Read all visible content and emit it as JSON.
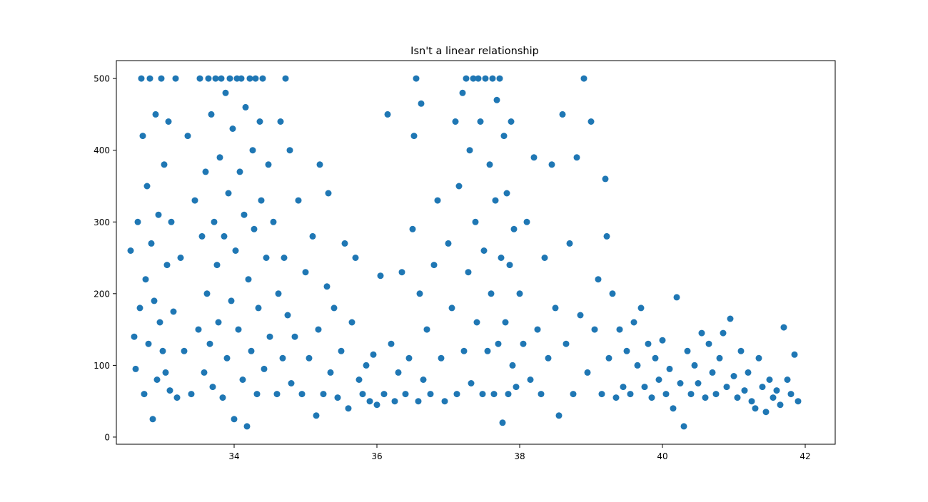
{
  "chart_data": {
    "type": "scatter",
    "title": "Isn't a linear relationship",
    "xlabel": "",
    "ylabel": "",
    "xlim": [
      32.35,
      42.42
    ],
    "ylim": [
      -10,
      525
    ],
    "xticks": [
      34,
      36,
      38,
      40,
      42
    ],
    "yticks": [
      0,
      100,
      200,
      300,
      400,
      500
    ],
    "grid": false,
    "marker_color": "#1f77b4",
    "series": [
      {
        "points": [
          [
            32.55,
            260
          ],
          [
            32.6,
            140
          ],
          [
            32.62,
            95
          ],
          [
            32.65,
            300
          ],
          [
            32.68,
            180
          ],
          [
            32.7,
            500
          ],
          [
            32.72,
            420
          ],
          [
            32.74,
            60
          ],
          [
            32.76,
            220
          ],
          [
            32.78,
            350
          ],
          [
            32.8,
            130
          ],
          [
            32.82,
            500
          ],
          [
            32.84,
            270
          ],
          [
            32.86,
            25
          ],
          [
            32.88,
            190
          ],
          [
            32.9,
            450
          ],
          [
            32.92,
            80
          ],
          [
            32.94,
            310
          ],
          [
            32.96,
            160
          ],
          [
            32.98,
            500
          ],
          [
            33.0,
            120
          ],
          [
            33.02,
            380
          ],
          [
            33.04,
            90
          ],
          [
            33.06,
            240
          ],
          [
            33.08,
            440
          ],
          [
            33.1,
            65
          ],
          [
            33.12,
            300
          ],
          [
            33.15,
            175
          ],
          [
            33.18,
            500
          ],
          [
            33.2,
            55
          ],
          [
            33.25,
            250
          ],
          [
            33.3,
            120
          ],
          [
            33.35,
            420
          ],
          [
            33.4,
            60
          ],
          [
            33.45,
            330
          ],
          [
            33.5,
            150
          ],
          [
            33.52,
            500
          ],
          [
            33.55,
            280
          ],
          [
            33.58,
            90
          ],
          [
            33.6,
            370
          ],
          [
            33.62,
            200
          ],
          [
            33.64,
            500
          ],
          [
            33.66,
            130
          ],
          [
            33.68,
            450
          ],
          [
            33.7,
            70
          ],
          [
            33.72,
            300
          ],
          [
            33.74,
            500
          ],
          [
            33.76,
            240
          ],
          [
            33.78,
            160
          ],
          [
            33.8,
            390
          ],
          [
            33.82,
            500
          ],
          [
            33.84,
            55
          ],
          [
            33.86,
            280
          ],
          [
            33.88,
            480
          ],
          [
            33.9,
            110
          ],
          [
            33.92,
            340
          ],
          [
            33.94,
            500
          ],
          [
            33.96,
            190
          ],
          [
            33.98,
            430
          ],
          [
            34.0,
            25
          ],
          [
            34.02,
            260
          ],
          [
            34.04,
            500
          ],
          [
            34.06,
            150
          ],
          [
            34.08,
            370
          ],
          [
            34.1,
            500
          ],
          [
            34.12,
            80
          ],
          [
            34.14,
            310
          ],
          [
            34.16,
            460
          ],
          [
            34.18,
            15
          ],
          [
            34.2,
            220
          ],
          [
            34.22,
            500
          ],
          [
            34.24,
            120
          ],
          [
            34.26,
            400
          ],
          [
            34.28,
            290
          ],
          [
            34.3,
            500
          ],
          [
            34.32,
            60
          ],
          [
            34.34,
            180
          ],
          [
            34.36,
            440
          ],
          [
            34.38,
            330
          ],
          [
            34.4,
            500
          ],
          [
            34.42,
            95
          ],
          [
            34.45,
            250
          ],
          [
            34.48,
            380
          ],
          [
            34.5,
            140
          ],
          [
            34.55,
            300
          ],
          [
            34.6,
            60
          ],
          [
            34.62,
            200
          ],
          [
            34.65,
            440
          ],
          [
            34.68,
            110
          ],
          [
            34.7,
            250
          ],
          [
            34.72,
            500
          ],
          [
            34.75,
            170
          ],
          [
            34.78,
            400
          ],
          [
            34.8,
            75
          ],
          [
            34.85,
            140
          ],
          [
            34.9,
            330
          ],
          [
            34.95,
            60
          ],
          [
            35.0,
            230
          ],
          [
            35.05,
            110
          ],
          [
            35.1,
            280
          ],
          [
            35.15,
            30
          ],
          [
            35.18,
            150
          ],
          [
            35.2,
            380
          ],
          [
            35.25,
            60
          ],
          [
            35.3,
            210
          ],
          [
            35.32,
            340
          ],
          [
            35.35,
            90
          ],
          [
            35.4,
            180
          ],
          [
            35.45,
            55
          ],
          [
            35.5,
            120
          ],
          [
            35.55,
            270
          ],
          [
            35.6,
            40
          ],
          [
            35.65,
            160
          ],
          [
            35.7,
            250
          ],
          [
            35.75,
            80
          ],
          [
            35.8,
            60
          ],
          [
            35.85,
            100
          ],
          [
            35.9,
            50
          ],
          [
            35.95,
            115
          ],
          [
            36.0,
            45
          ],
          [
            36.05,
            225
          ],
          [
            36.1,
            60
          ],
          [
            36.15,
            450
          ],
          [
            36.2,
            130
          ],
          [
            36.25,
            50
          ],
          [
            36.3,
            90
          ],
          [
            36.35,
            230
          ],
          [
            36.4,
            60
          ],
          [
            36.45,
            110
          ],
          [
            36.5,
            290
          ],
          [
            36.52,
            420
          ],
          [
            36.55,
            500
          ],
          [
            36.58,
            50
          ],
          [
            36.6,
            200
          ],
          [
            36.62,
            465
          ],
          [
            36.65,
            80
          ],
          [
            36.7,
            150
          ],
          [
            36.75,
            60
          ],
          [
            36.8,
            240
          ],
          [
            36.85,
            330
          ],
          [
            36.9,
            110
          ],
          [
            36.95,
            50
          ],
          [
            37.0,
            270
          ],
          [
            37.05,
            180
          ],
          [
            37.1,
            440
          ],
          [
            37.12,
            60
          ],
          [
            37.15,
            350
          ],
          [
            37.2,
            480
          ],
          [
            37.22,
            120
          ],
          [
            37.25,
            500
          ],
          [
            37.28,
            230
          ],
          [
            37.3,
            400
          ],
          [
            37.32,
            75
          ],
          [
            37.35,
            500
          ],
          [
            37.38,
            300
          ],
          [
            37.4,
            160
          ],
          [
            37.42,
            500
          ],
          [
            37.45,
            440
          ],
          [
            37.48,
            60
          ],
          [
            37.5,
            260
          ],
          [
            37.52,
            500
          ],
          [
            37.55,
            120
          ],
          [
            37.58,
            380
          ],
          [
            37.6,
            200
          ],
          [
            37.62,
            500
          ],
          [
            37.64,
            60
          ],
          [
            37.66,
            330
          ],
          [
            37.68,
            470
          ],
          [
            37.7,
            130
          ],
          [
            37.72,
            500
          ],
          [
            37.74,
            250
          ],
          [
            37.76,
            20
          ],
          [
            37.78,
            420
          ],
          [
            37.8,
            160
          ],
          [
            37.82,
            340
          ],
          [
            37.84,
            60
          ],
          [
            37.86,
            240
          ],
          [
            37.88,
            440
          ],
          [
            37.9,
            100
          ],
          [
            37.92,
            290
          ],
          [
            37.95,
            70
          ],
          [
            38.0,
            200
          ],
          [
            38.05,
            130
          ],
          [
            38.1,
            300
          ],
          [
            38.15,
            80
          ],
          [
            38.2,
            390
          ],
          [
            38.25,
            150
          ],
          [
            38.3,
            60
          ],
          [
            38.35,
            250
          ],
          [
            38.4,
            110
          ],
          [
            38.45,
            380
          ],
          [
            38.5,
            180
          ],
          [
            38.55,
            30
          ],
          [
            38.6,
            450
          ],
          [
            38.65,
            130
          ],
          [
            38.7,
            270
          ],
          [
            38.75,
            60
          ],
          [
            38.8,
            390
          ],
          [
            38.85,
            170
          ],
          [
            38.9,
            500
          ],
          [
            38.95,
            90
          ],
          [
            39.0,
            440
          ],
          [
            39.05,
            150
          ],
          [
            39.1,
            220
          ],
          [
            39.15,
            60
          ],
          [
            39.2,
            360
          ],
          [
            39.22,
            280
          ],
          [
            39.25,
            110
          ],
          [
            39.3,
            200
          ],
          [
            39.35,
            55
          ],
          [
            39.4,
            150
          ],
          [
            39.45,
            70
          ],
          [
            39.5,
            120
          ],
          [
            39.55,
            60
          ],
          [
            39.6,
            160
          ],
          [
            39.65,
            100
          ],
          [
            39.7,
            180
          ],
          [
            39.75,
            70
          ],
          [
            39.8,
            130
          ],
          [
            39.85,
            55
          ],
          [
            39.9,
            110
          ],
          [
            39.95,
            80
          ],
          [
            40.0,
            135
          ],
          [
            40.05,
            60
          ],
          [
            40.1,
            95
          ],
          [
            40.15,
            40
          ],
          [
            40.2,
            195
          ],
          [
            40.25,
            75
          ],
          [
            40.3,
            15
          ],
          [
            40.35,
            120
          ],
          [
            40.4,
            60
          ],
          [
            40.45,
            100
          ],
          [
            40.5,
            75
          ],
          [
            40.55,
            145
          ],
          [
            40.6,
            55
          ],
          [
            40.65,
            130
          ],
          [
            40.7,
            90
          ],
          [
            40.75,
            60
          ],
          [
            40.8,
            110
          ],
          [
            40.85,
            145
          ],
          [
            40.9,
            70
          ],
          [
            40.95,
            165
          ],
          [
            41.0,
            85
          ],
          [
            41.05,
            55
          ],
          [
            41.1,
            120
          ],
          [
            41.15,
            65
          ],
          [
            41.2,
            90
          ],
          [
            41.25,
            50
          ],
          [
            41.3,
            40
          ],
          [
            41.35,
            110
          ],
          [
            41.4,
            70
          ],
          [
            41.45,
            35
          ],
          [
            41.5,
            80
          ],
          [
            41.55,
            55
          ],
          [
            41.6,
            65
          ],
          [
            41.65,
            45
          ],
          [
            41.7,
            153
          ],
          [
            41.75,
            80
          ],
          [
            41.8,
            60
          ],
          [
            41.85,
            115
          ],
          [
            41.9,
            50
          ]
        ]
      }
    ]
  }
}
